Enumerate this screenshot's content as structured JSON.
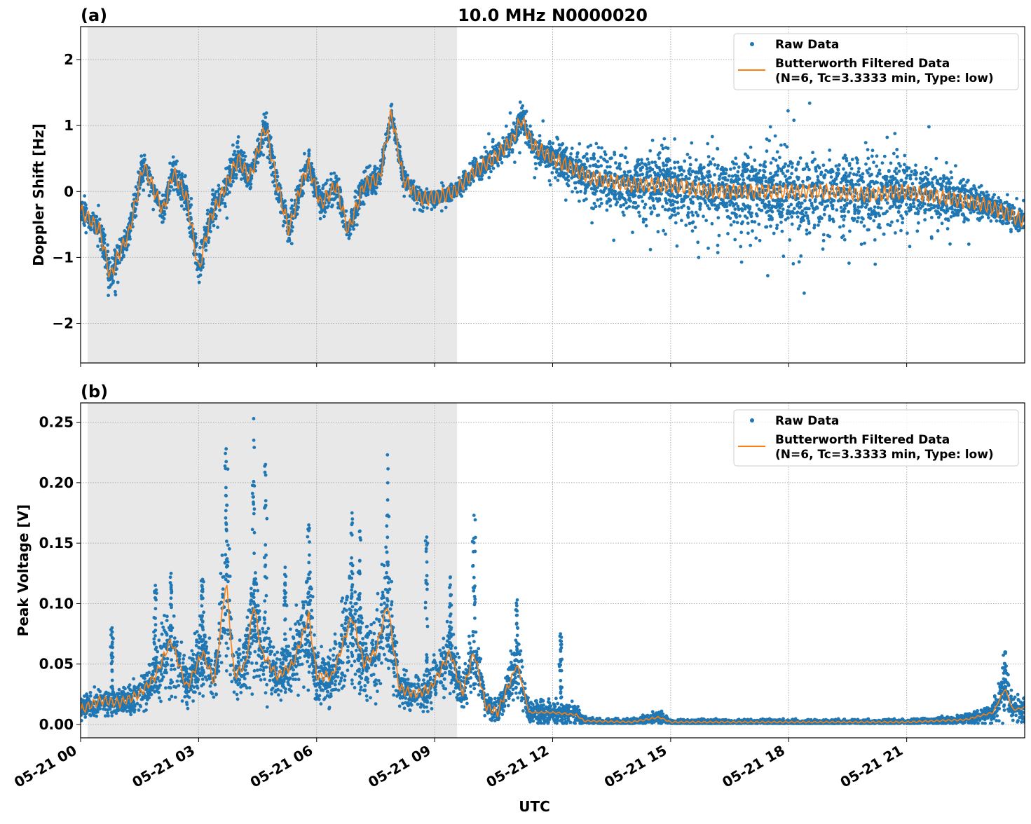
{
  "chart_data": [
    {
      "type": "scatter",
      "panel_label": "(a)",
      "title": "10.0 MHz N0000020",
      "xlabel": "",
      "ylabel": "Doppler Shift [Hz]",
      "xlim_hours": [
        0,
        24
      ],
      "ylim": [
        -2.6,
        2.5
      ],
      "yticks": [
        -2,
        -1,
        0,
        1,
        2
      ],
      "ytick_labels": [
        "−2",
        "−1",
        "0",
        "1",
        "2"
      ],
      "grid": true,
      "legend_placement": "top-right",
      "shaded_region_hours": [
        0.18,
        9.57
      ],
      "shade_color": "#e8e8e8",
      "series": [
        {
          "name": "Raw Data",
          "kind": "points",
          "color": "#1f77b4",
          "x_hours": [
            0,
            1,
            2,
            3,
            4,
            5,
            6,
            7,
            8,
            9,
            10,
            11,
            12,
            13,
            14,
            15,
            16,
            17,
            18,
            19,
            20,
            21,
            22,
            23,
            24
          ],
          "spread": [
            0.3,
            0.4,
            0.3,
            0.5,
            0.4,
            0.4,
            0.35,
            0.4,
            0.3,
            0.2,
            0.3,
            0.35,
            0.4,
            0.7,
            0.9,
            1.0,
            1.0,
            1.0,
            1.05,
            1.0,
            0.95,
            0.9,
            0.7,
            0.35,
            0.3
          ]
        },
        {
          "name": "Butterworth Filtered Data\n(N=6, Tc=3.3333 min, Type: low)",
          "kind": "line",
          "color": "#ff7f0e",
          "x_hours": [
            0,
            0.2,
            0.5,
            0.75,
            1.0,
            1.2,
            1.6,
            2.1,
            2.35,
            2.7,
            3.0,
            3.3,
            3.7,
            4.0,
            4.3,
            4.7,
            5.0,
            5.3,
            5.6,
            5.8,
            6.1,
            6.5,
            6.8,
            7.2,
            7.6,
            7.9,
            8.2,
            8.6,
            9.0,
            9.5,
            10.0,
            10.5,
            11.0,
            11.2,
            11.5,
            12.0,
            12.5,
            13.0,
            14.0,
            15.0,
            16.0,
            17.0,
            18.0,
            19.0,
            20.0,
            21.0,
            22.0,
            23.0,
            24.0
          ],
          "y": [
            -0.3,
            -0.4,
            -0.6,
            -1.3,
            -0.9,
            -0.7,
            0.4,
            -0.3,
            0.3,
            -0.1,
            -1.2,
            -0.4,
            0.1,
            0.5,
            0.2,
            1.0,
            0.1,
            -0.6,
            0.1,
            0.4,
            -0.2,
            0.1,
            -0.6,
            0.1,
            0.2,
            1.2,
            0.2,
            -0.1,
            -0.1,
            0.0,
            0.3,
            0.5,
            0.8,
            1.1,
            0.7,
            0.5,
            0.35,
            0.2,
            0.1,
            0.1,
            0.0,
            0.0,
            0.0,
            0.0,
            -0.05,
            0.0,
            -0.1,
            -0.2,
            -0.45
          ]
        }
      ]
    },
    {
      "type": "scatter",
      "panel_label": "(b)",
      "xlabel": "UTC",
      "ylabel": "Peak Voltage [V]",
      "xlim_hours": [
        0,
        24
      ],
      "ylim": [
        -0.011,
        0.266
      ],
      "yticks": [
        0,
        0.05,
        0.1,
        0.15,
        0.2,
        0.25
      ],
      "ytick_labels": [
        "0.00",
        "0.05",
        "0.10",
        "0.15",
        "0.20",
        "0.25"
      ],
      "xticks_hours": [
        0,
        3,
        6,
        9,
        12,
        15,
        18,
        21
      ],
      "xtick_labels": [
        "05-21 00",
        "05-21 03",
        "05-21 06",
        "05-21 09",
        "05-21 12",
        "05-21 15",
        "05-21 18",
        "05-21 21"
      ],
      "grid": true,
      "legend_placement": "top-right",
      "shaded_region_hours": [
        0.18,
        9.57
      ],
      "series": [
        {
          "name": "Raw Data",
          "kind": "points",
          "color": "#1f77b4",
          "spikes": [
            [
              0.8,
              0.08
            ],
            [
              1.9,
              0.115
            ],
            [
              2.3,
              0.125
            ],
            [
              3.1,
              0.12
            ],
            [
              3.7,
              0.228
            ],
            [
              4.4,
              0.253
            ],
            [
              4.7,
              0.215
            ],
            [
              5.2,
              0.13
            ],
            [
              5.8,
              0.165
            ],
            [
              6.9,
              0.175
            ],
            [
              7.1,
              0.16
            ],
            [
              7.8,
              0.223
            ],
            [
              8.8,
              0.155
            ],
            [
              9.4,
              0.122
            ],
            [
              10.0,
              0.173
            ],
            [
              11.1,
              0.103
            ],
            [
              12.2,
              0.075
            ],
            [
              23.5,
              0.06
            ]
          ]
        },
        {
          "name": "Butterworth Filtered Data\n(N=6, Tc=3.3333 min, Type: low)",
          "kind": "line",
          "color": "#ff7f0e",
          "x_hours": [
            0,
            0.5,
            1.0,
            1.5,
            1.9,
            2.3,
            2.7,
            3.1,
            3.4,
            3.7,
            3.9,
            4.2,
            4.4,
            4.6,
            5.0,
            5.4,
            5.8,
            6.0,
            6.4,
            6.9,
            7.2,
            7.5,
            7.8,
            8.1,
            8.5,
            8.9,
            9.4,
            9.7,
            10.0,
            10.3,
            10.6,
            11.1,
            11.4,
            12.0,
            12.6,
            12.8,
            14.0,
            14.7,
            15.0,
            18.0,
            21.0,
            22.5,
            23.2,
            23.5,
            23.7,
            24.0
          ],
          "y": [
            0.012,
            0.02,
            0.018,
            0.025,
            0.04,
            0.07,
            0.03,
            0.06,
            0.035,
            0.12,
            0.04,
            0.05,
            0.1,
            0.06,
            0.04,
            0.05,
            0.09,
            0.04,
            0.04,
            0.09,
            0.05,
            0.06,
            0.1,
            0.03,
            0.025,
            0.03,
            0.06,
            0.025,
            0.06,
            0.015,
            0.01,
            0.05,
            0.01,
            0.01,
            0.008,
            0.003,
            0.002,
            0.006,
            0.002,
            0.002,
            0.002,
            0.004,
            0.01,
            0.03,
            0.012,
            0.014
          ]
        }
      ]
    }
  ]
}
